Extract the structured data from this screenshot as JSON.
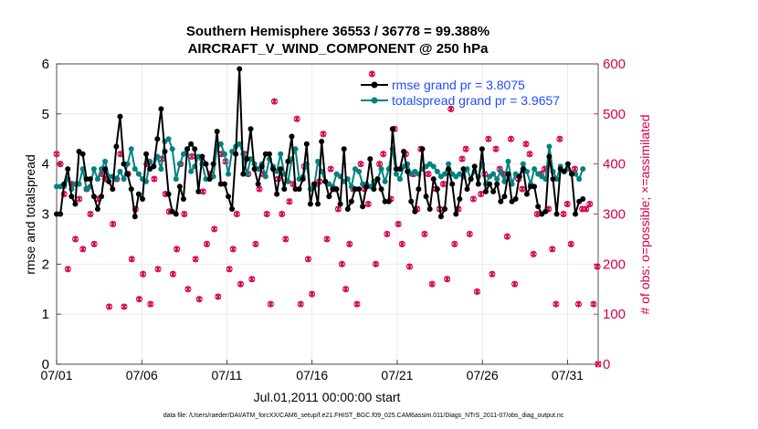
{
  "colors": {
    "rmse": "#000000",
    "spread": "#00827f",
    "obs": "#d4004c",
    "legend_text": "#1f4fff"
  },
  "chart_data": {
    "type": "line",
    "title_line1": "Southern Hemisphere 36553 / 36778 = 99.388%",
    "title_line2": "AIRCRAFT_V_WIND_COMPONENT @ 250 hPa",
    "ylabel": "rmse and totalspread",
    "y2label": "# of obs: o=possible; ×=assimilated",
    "xlabel": "Jul.01,2011 00:00:00 start",
    "footnote": "data file: /Users/raeder/DAI/ATM_forcXX/CAM6_setup/f.e21.FHIST_BGC.f09_025.CAM6assim.011/Diags_NTrS_2011-07/obs_diag_output.nc",
    "ylim": [
      0,
      6
    ],
    "y2lim": [
      0,
      600
    ],
    "xlim": [
      0,
      31.8
    ],
    "yticks": [
      "0",
      "1",
      "2",
      "3",
      "4",
      "5",
      "6"
    ],
    "y2ticks": [
      "0",
      "100",
      "200",
      "300",
      "400",
      "500",
      "600"
    ],
    "xticks": [
      {
        "x": 0,
        "label": "07/01"
      },
      {
        "x": 5,
        "label": "07/06"
      },
      {
        "x": 10,
        "label": "07/11"
      },
      {
        "x": 15,
        "label": "07/16"
      },
      {
        "x": 20,
        "label": "07/21"
      },
      {
        "x": 25,
        "label": "07/26"
      },
      {
        "x": 30,
        "label": "07/31"
      }
    ],
    "series": [
      {
        "name": "rmse",
        "legend": "rmse grand pr = 3.8075",
        "axis": "left",
        "values": [
          3.0,
          3.0,
          3.6,
          3.9,
          3.35,
          3.2,
          4.25,
          4.2,
          3.7,
          3.7,
          3.35,
          3.1,
          3.35,
          3.9,
          3.65,
          3.5,
          4.35,
          4.95,
          4.0,
          3.8,
          3.5,
          2.95,
          3.4,
          3.3,
          4.2,
          3.9,
          3.95,
          4.5,
          5.1,
          4.25,
          3.4,
          3.05,
          3.0,
          3.55,
          3.3,
          4.3,
          4.4,
          4.3,
          3.45,
          4.15,
          4.0,
          3.7,
          4.0,
          4.65,
          3.6,
          3.6,
          3.35,
          3.1,
          4.2,
          5.9,
          3.8,
          4.1,
          4.7,
          3.9,
          3.6,
          3.95,
          4.2,
          4.2,
          3.9,
          3.4,
          3.9,
          3.5,
          4.05,
          4.55,
          3.5,
          3.5,
          3.7,
          4.4,
          3.2,
          3.6,
          3.2,
          4.45,
          3.65,
          3.35,
          3.5,
          3.5,
          3.2,
          4.3,
          3.1,
          3.25,
          3.5,
          3.5,
          3.15,
          3.55,
          4.1,
          3.5,
          3.7,
          3.5,
          3.25,
          3.25,
          4.7,
          3.9,
          3.9,
          4.25,
          3.85,
          3.25,
          3.05,
          3.5,
          4.3,
          3.35,
          3.1,
          3.7,
          3.5,
          2.95,
          3.1,
          3.9,
          3.6,
          3.0,
          3.3,
          3.9,
          3.5,
          3.7,
          3.95,
          3.6,
          4.3,
          3.45,
          3.6,
          3.45,
          3.6,
          3.25,
          3.35,
          3.8,
          3.25,
          3.3,
          3.75,
          3.9,
          3.4,
          3.55,
          3.55,
          3.15,
          3.0,
          3.05,
          4.15,
          3.7,
          3.0,
          3.9,
          3.85,
          4.0,
          3.8,
          3.0,
          3.25,
          3.3
        ]
      },
      {
        "name": "totalspread",
        "legend": "totalspread grand pr = 3.9657",
        "axis": "left",
        "values": [
          3.55,
          3.55,
          3.55,
          3.7,
          3.5,
          3.6,
          3.6,
          3.9,
          3.5,
          3.55,
          3.9,
          3.7,
          3.9,
          4.05,
          3.75,
          3.75,
          3.7,
          3.85,
          3.7,
          4.0,
          4.3,
          3.9,
          3.8,
          3.7,
          3.65,
          4.05,
          3.95,
          4.15,
          3.9,
          4.45,
          4.5,
          4.3,
          3.7,
          4.0,
          4.2,
          4.3,
          3.85,
          3.95,
          4.15,
          4.0,
          3.7,
          3.7,
          3.75,
          4.35,
          4.4,
          4.2,
          3.8,
          4.25,
          4.35,
          4.4,
          4.2,
          3.8,
          4.1,
          4.0,
          3.9,
          4.0,
          3.75,
          4.1,
          3.95,
          3.85,
          4.2,
          3.8,
          3.65,
          4.1,
          4.3,
          3.7,
          3.75,
          4.0,
          3.5,
          3.55,
          4.05,
          3.85,
          3.65,
          3.6,
          3.55,
          3.8,
          3.75,
          3.65,
          3.7,
          3.55,
          3.9,
          3.85,
          3.6,
          3.6,
          3.55,
          3.65,
          3.7,
          3.9,
          3.65,
          3.9,
          4.3,
          3.8,
          3.7,
          3.95,
          4.0,
          3.8,
          3.85,
          3.8,
          3.9,
          3.95,
          4.0,
          3.95,
          3.85,
          3.75,
          3.8,
          4.0,
          3.8,
          3.75,
          3.8,
          3.75,
          3.9,
          3.7,
          3.85,
          3.75,
          4.0,
          3.6,
          3.75,
          3.8,
          3.7,
          3.85,
          3.65,
          4.05,
          3.6,
          3.8,
          3.75,
          4.0,
          3.85,
          3.6,
          3.9,
          3.8,
          3.75,
          3.7,
          4.35,
          3.85,
          3.7,
          3.95,
          3.85,
          3.9,
          3.8,
          3.8,
          3.7,
          3.9
        ]
      },
      {
        "name": "obs_possible",
        "axis": "right",
        "values": [
          420,
          400,
          340,
          190,
          360,
          250,
          330,
          230,
          350,
          300,
          240,
          330,
          380,
          370,
          115,
          280,
          370,
          420,
          115,
          380,
          210,
          310,
          130,
          180,
          400,
          120,
          370,
          190,
          410,
          340,
          305,
          180,
          230,
          400,
          300,
          150,
          415,
          210,
          130,
          345,
          240,
          380,
          270,
          135,
          420,
          405,
          190,
          230,
          300,
          160,
          420,
          380,
          170,
          240,
          350,
          380,
          300,
          120,
          525,
          370,
          300,
          250,
          325,
          360,
          490,
          120,
          395,
          210,
          140,
          360,
          365,
          460,
          250,
          390,
          350,
          310,
          200,
          150,
          240,
          350,
          120,
          400,
          350,
          320,
          580,
          200,
          400,
          420,
          260,
          330,
          470,
          280,
          240,
          420,
          195,
          380,
          310,
          430,
          260,
          380,
          160,
          350,
          310,
          360,
          170,
          510,
          240,
          310,
          410,
          430,
          260,
          330,
          145,
          340,
          380,
          450,
          180,
          430,
          390,
          380,
          255,
          450,
          160,
          370,
          350,
          440,
          420,
          220,
          300,
          380,
          390,
          310,
          230,
          120,
          450,
          300,
          320,
          240,
          390,
          120,
          310,
          310,
          320,
          120,
          195
        ]
      }
    ]
  }
}
